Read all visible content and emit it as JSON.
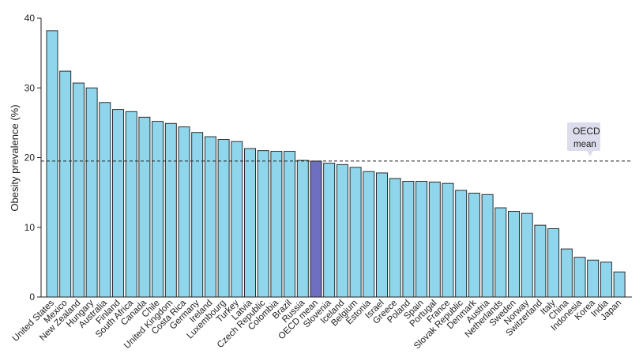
{
  "chart_data": {
    "type": "bar",
    "title": "",
    "xlabel": "",
    "ylabel": "Obesity prevalence (%)",
    "ylim": [
      0,
      40
    ],
    "yticks": [
      0,
      10,
      20,
      30,
      40
    ],
    "grid": false,
    "categories": [
      "United States",
      "Mexico",
      "New Zealand",
      "Hungary",
      "Australia",
      "Finland",
      "South Africa",
      "Canada",
      "Chile",
      "United Kingdom",
      "Costa Rica",
      "Germany",
      "Ireland",
      "Luxembourg",
      "Turkey",
      "Latvia",
      "Czech Republic",
      "Colombia",
      "Brazil",
      "Russia",
      "OECD mean",
      "Slovenia",
      "Iceland",
      "Belgium",
      "Estonia",
      "Israel",
      "Greece",
      "Poland",
      "Spain",
      "Portugal",
      "France",
      "Slovak Republic",
      "Denmark",
      "Austria",
      "Netherlands",
      "Sweden",
      "Norway",
      "Switzerland",
      "Italy",
      "China",
      "Indonesia",
      "Korea",
      "India",
      "Japan"
    ],
    "values": [
      38.2,
      32.4,
      30.7,
      30.0,
      27.9,
      26.9,
      26.6,
      25.8,
      25.2,
      24.9,
      24.4,
      23.6,
      23.0,
      22.6,
      22.3,
      21.3,
      21.0,
      20.9,
      20.9,
      19.6,
      19.5,
      19.2,
      19.0,
      18.6,
      18.0,
      17.8,
      17.0,
      16.6,
      16.6,
      16.5,
      16.3,
      15.3,
      14.9,
      14.7,
      12.8,
      12.3,
      12.0,
      10.3,
      9.8,
      6.9,
      5.7,
      5.3,
      5.0,
      3.6
    ],
    "highlight_category": "OECD mean",
    "bar_color": "#8fd6ec",
    "highlight_color": "#6f6fbf",
    "reference_line": {
      "value": 19.5,
      "style": "dashed",
      "label_line1": "OECD",
      "label_line2": "mean"
    }
  }
}
